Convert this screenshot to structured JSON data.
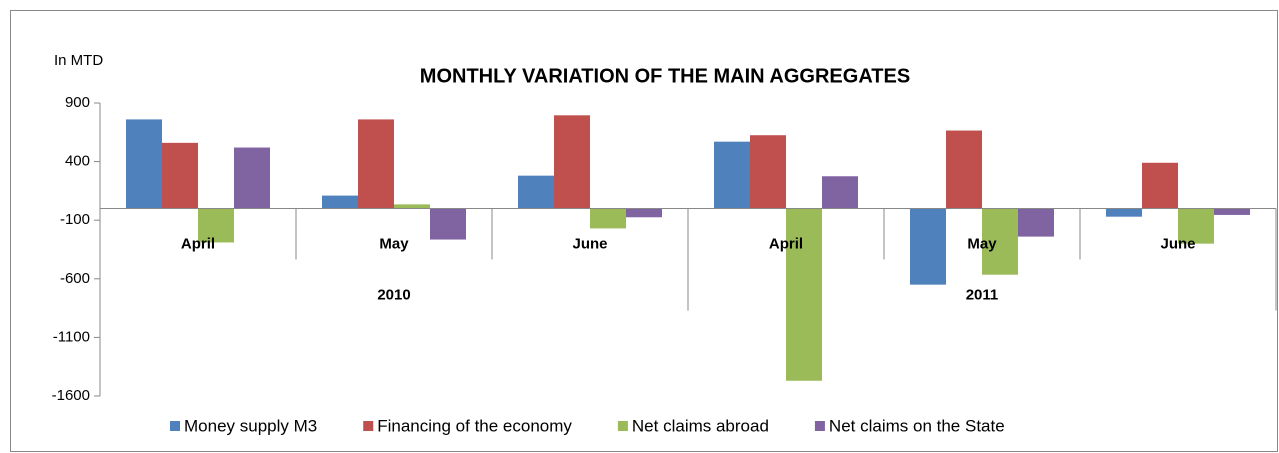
{
  "chart_data": {
    "type": "bar",
    "title": "MONTHLY VARIATION OF THE MAIN AGGREGATES",
    "y_axis_label": "In MTD",
    "categories": [
      "April",
      "May",
      "June",
      "April",
      "May",
      "June"
    ],
    "category_groups": [
      "2010",
      "2011"
    ],
    "series": [
      {
        "name": "Money supply M3",
        "color": "#4f81bd",
        "values": [
          760,
          110,
          280,
          570,
          -650,
          -70
        ]
      },
      {
        "name": "Financing of the economy",
        "color": "#c0504d",
        "values": [
          560,
          760,
          795,
          625,
          665,
          390
        ]
      },
      {
        "name": "Net claims abroad",
        "color": "#9bbb59",
        "values": [
          -290,
          35,
          -170,
          -1470,
          -565,
          -300
        ]
      },
      {
        "name": "Net claims on the State",
        "color": "#8064a2",
        "values": [
          520,
          -265,
          -75,
          275,
          -240,
          -55
        ]
      }
    ],
    "ylim": [
      -1600,
      900
    ],
    "yticks": [
      900,
      400,
      -100,
      -600,
      -1100,
      -1600
    ],
    "legend": "bottom"
  }
}
